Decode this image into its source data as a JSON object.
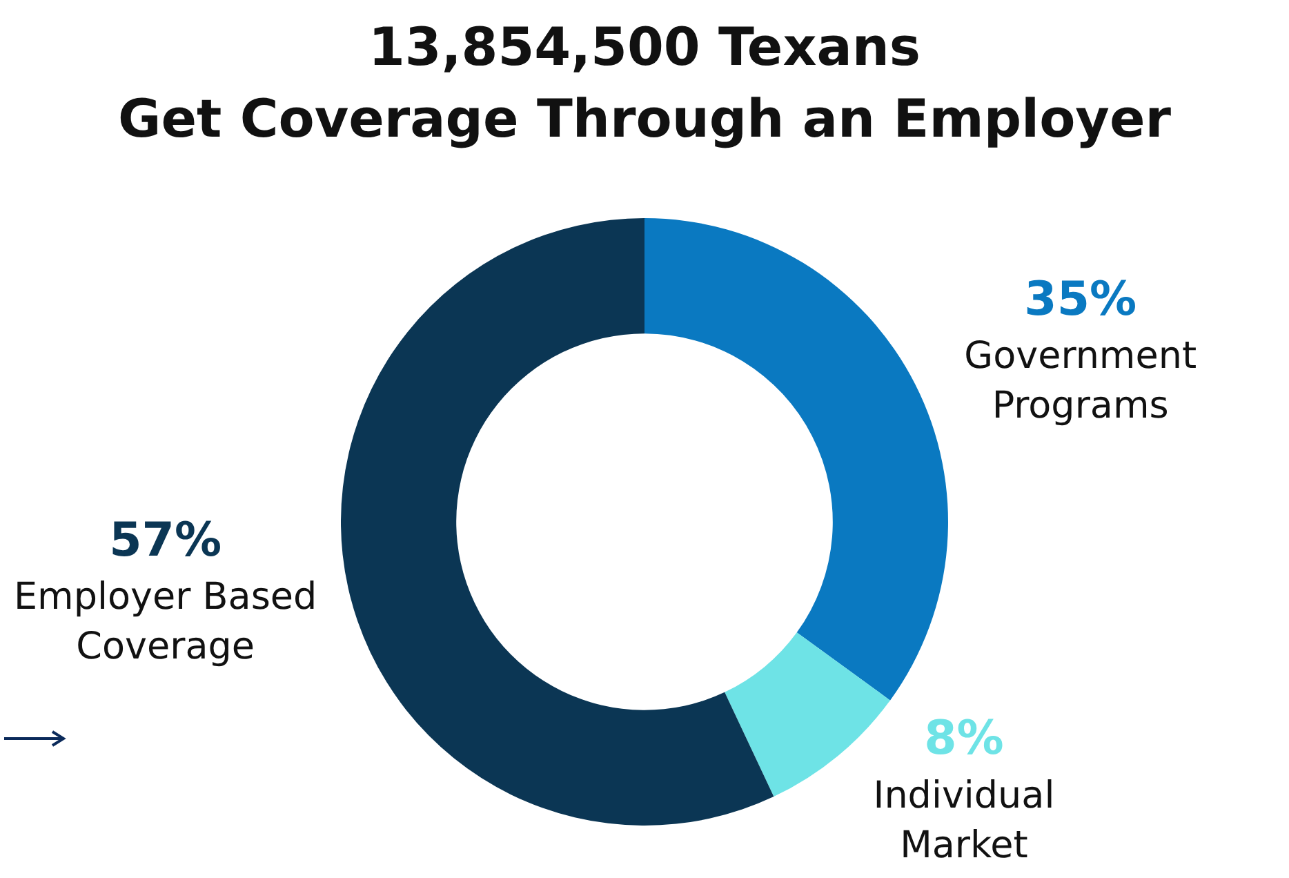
{
  "chart_data": {
    "type": "donut",
    "title": "13,854,500 Texans\nGet Coverage Through an Employer",
    "categories": [
      "Government Programs",
      "Individual Market",
      "Employer Based Coverage"
    ],
    "values": [
      35,
      8,
      57
    ],
    "value_labels": [
      "35%",
      "8%",
      "57%"
    ],
    "colors": [
      "#0a79c1",
      "#6ee3e6",
      "#0b3654"
    ],
    "legend": false
  }
}
